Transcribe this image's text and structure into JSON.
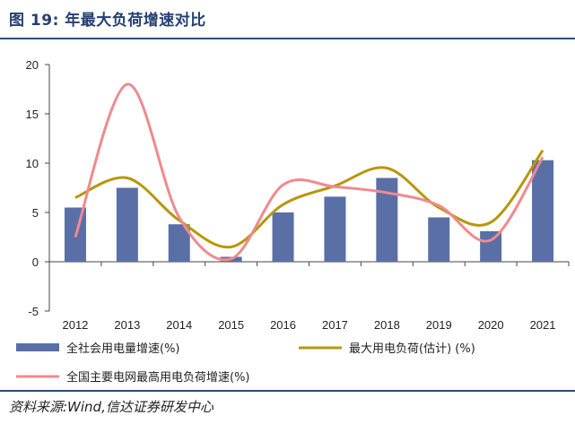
{
  "header": {
    "title": "图 19:  年最大负荷增速对比"
  },
  "footer": {
    "source": "资料来源:Wind,信达证券研发中心"
  },
  "colors": {
    "bar": "#5a6fa6",
    "line_max_load": "#b8960c",
    "line_grid_peak": "#f08a8e",
    "rule": "#2e4a7d"
  },
  "chart_data": {
    "type": "bar",
    "categories": [
      "2012",
      "2013",
      "2014",
      "2015",
      "2016",
      "2017",
      "2018",
      "2019",
      "2020",
      "2021"
    ],
    "ylim": [
      -5,
      20
    ],
    "yticks": [
      "20",
      "15",
      "10",
      "5",
      "0",
      "-5"
    ],
    "ytick_values": [
      20,
      15,
      10,
      5,
      0,
      -5
    ],
    "grid": false,
    "legend_position": "bottom",
    "series": [
      {
        "name": "全社会用电量增速(%)",
        "type": "bar",
        "values": [
          5.5,
          7.5,
          3.8,
          0.5,
          5.0,
          6.6,
          8.5,
          4.5,
          3.1,
          10.3
        ]
      },
      {
        "name": "最大用电负荷(估计)  (%)",
        "type": "line",
        "values": [
          6.5,
          8.5,
          4.2,
          1.5,
          5.8,
          7.7,
          9.5,
          5.5,
          4.0,
          11.3
        ]
      },
      {
        "name": "全国主要电网最高用电负荷增速(%)",
        "type": "line",
        "values": [
          2.5,
          18.0,
          4.5,
          0.3,
          7.8,
          7.6,
          7.0,
          5.7,
          2.2,
          10.6
        ]
      }
    ]
  }
}
